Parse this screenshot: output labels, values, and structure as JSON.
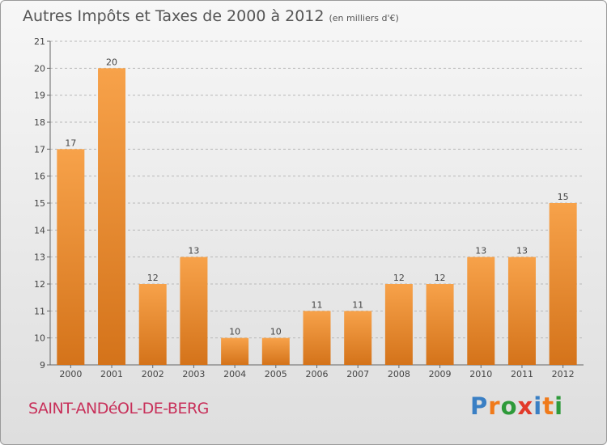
{
  "header": {
    "title": "Autres Impôts et Taxes de 2000 à 2012",
    "unit": "(en milliers d'€)"
  },
  "footer": {
    "commune": "SAINT-ANDéOL-DE-BERG",
    "brand": [
      "P",
      "r",
      "o",
      "x",
      "i",
      "t",
      "i"
    ],
    "brand_colors": [
      "#3a7fc4",
      "#f07a1a",
      "#2e9a3a",
      "#e23a2a",
      "#3a7fc4",
      "#f07a1a",
      "#2e9a3a"
    ]
  },
  "colors": {
    "bar_top": "#f7a24a",
    "bar_bottom": "#d4731a",
    "grid": "#b8b8b8",
    "text": "#444444"
  },
  "chart_data": {
    "type": "bar",
    "categories": [
      "2000",
      "2001",
      "2002",
      "2003",
      "2004",
      "2005",
      "2006",
      "2007",
      "2008",
      "2009",
      "2010",
      "2011",
      "2012"
    ],
    "values": [
      17,
      20,
      12,
      13,
      10,
      10,
      11,
      11,
      12,
      12,
      13,
      13,
      15
    ],
    "y_ticks": [
      "9",
      "10",
      "11",
      "12",
      "13",
      "14",
      "15",
      "16",
      "17",
      "18",
      "19",
      "20",
      "21"
    ],
    "ylim": [
      9,
      21
    ],
    "grid": "horizontal dashed",
    "title": "Autres Impôts et Taxes de 2000 à 2012",
    "xlabel": "",
    "ylabel": ""
  }
}
